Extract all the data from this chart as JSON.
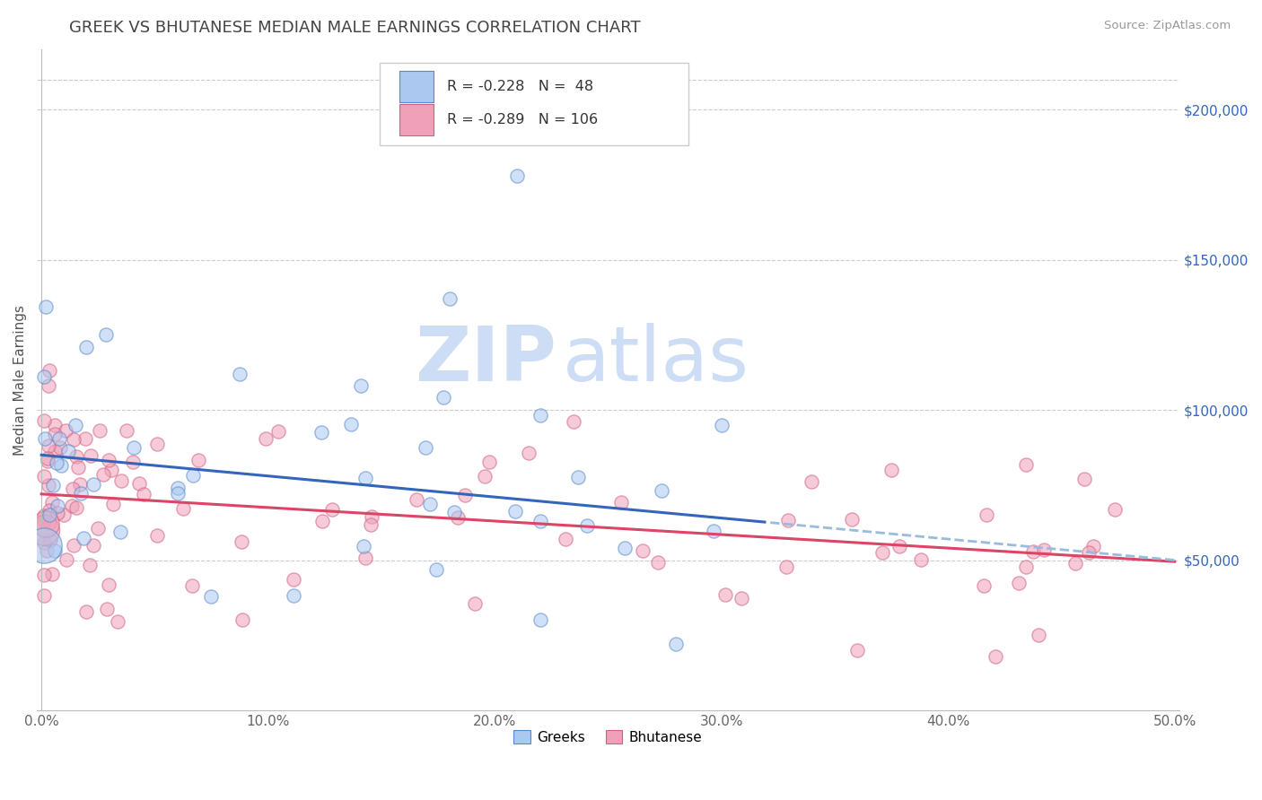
{
  "title": "GREEK VS BHUTANESE MEDIAN MALE EARNINGS CORRELATION CHART",
  "source": "Source: ZipAtlas.com",
  "ylabel": "Median Male Earnings",
  "xlim": [
    -0.002,
    0.502
  ],
  "ylim": [
    0,
    220000
  ],
  "xticks": [
    0.0,
    0.1,
    0.2,
    0.3,
    0.4,
    0.5
  ],
  "xticklabels": [
    "0.0%",
    "10.0%",
    "20.0%",
    "30.0%",
    "40.0%",
    "50.0%"
  ],
  "yticks_right": [
    50000,
    100000,
    150000,
    200000
  ],
  "ytick_labels_right": [
    "$50,000",
    "$100,000",
    "$150,000",
    "$200,000"
  ],
  "legend_r1": "R = -0.228",
  "legend_n1": "N =  48",
  "legend_r2": "R = -0.289",
  "legend_n2": "N = 106",
  "blue_face": "#aac8f0",
  "blue_edge": "#5588cc",
  "pink_face": "#f0a0b8",
  "pink_edge": "#d06080",
  "blue_line": "#3366bb",
  "pink_line": "#dd4466",
  "blue_dash": "#99bbdd",
  "watermark": "ZIPatlas",
  "watermark_color": "#ccddf5",
  "bg": "#ffffff",
  "title_color": "#444444",
  "dot_size": 120,
  "dot_alpha": 0.55,
  "greek_trend_intercept": 85000,
  "greek_trend_slope": -70000,
  "greek_trend_solid_end": 0.32,
  "bhutanese_trend_intercept": 72000,
  "bhutanese_trend_slope": -45000
}
